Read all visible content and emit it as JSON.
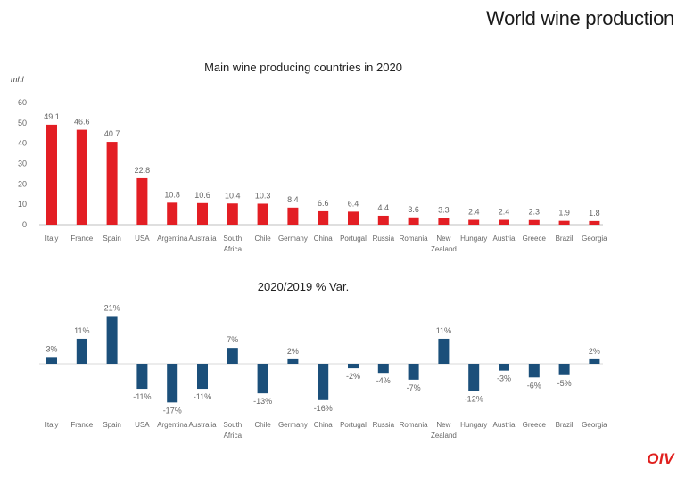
{
  "page": {
    "title": "World wine production",
    "logo_text": "OIV"
  },
  "colors": {
    "production_bar": "#e31e24",
    "variation_bar": "#1b4f7a",
    "label": "#666666"
  },
  "chart_data": [
    {
      "type": "bar",
      "title": "Main wine producing countries in 2020",
      "ylabel": "mhl",
      "xlabel": "",
      "ylim": [
        0,
        60
      ],
      "yticks": [
        0,
        10,
        20,
        30,
        40,
        50,
        60
      ],
      "grid": false,
      "categories": [
        "Italy",
        "France",
        "Spain",
        "USA",
        "Argentina",
        "Australia",
        "South Africa",
        "Chile",
        "Germany",
        "China",
        "Portugal",
        "Russia",
        "Romania",
        "New Zealand",
        "Hungary",
        "Austria",
        "Greece",
        "Brazil",
        "Georgia"
      ],
      "values": [
        49.1,
        46.6,
        40.7,
        22.8,
        10.8,
        10.6,
        10.4,
        10.3,
        8.4,
        6.6,
        6.4,
        4.4,
        3.6,
        3.3,
        2.4,
        2.4,
        2.3,
        1.9,
        1.8
      ],
      "data_labels": [
        "49.1",
        "46.6",
        "40.7",
        "22.8",
        "10.8",
        "10.6",
        "10.4",
        "10.3",
        "8.4",
        "6.6",
        "6.4",
        "4.4",
        "3.6",
        "3.3",
        "2.4",
        "2.4",
        "2.3",
        "1.9",
        "1.8"
      ]
    },
    {
      "type": "bar",
      "title": "2020/2019 % Var.",
      "xlabel": "",
      "ylabel": "",
      "ylim": [
        -25,
        25
      ],
      "grid": false,
      "categories": [
        "Italy",
        "France",
        "Spain",
        "USA",
        "Argentina",
        "Australia",
        "South Africa",
        "Chile",
        "Germany",
        "China",
        "Portugal",
        "Russia",
        "Romania",
        "New Zealand",
        "Hungary",
        "Austria",
        "Greece",
        "Brazil",
        "Georgia"
      ],
      "values": [
        3,
        11,
        21,
        -11,
        -17,
        -11,
        7,
        -13,
        2,
        -16,
        -2,
        -4,
        -7,
        11,
        -12,
        -3,
        -6,
        -5,
        2
      ],
      "data_labels": [
        "3%",
        "11%",
        "21%",
        "-11%",
        "-17%",
        "-11%",
        "7%",
        "-13%",
        "2%",
        "-16%",
        "-2%",
        "-4%",
        "-7%",
        "11%",
        "-12%",
        "-3%",
        "-6%",
        "-5%",
        "2%"
      ]
    }
  ]
}
